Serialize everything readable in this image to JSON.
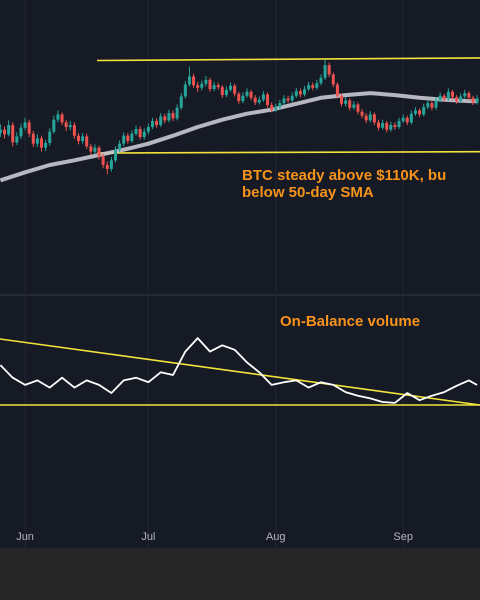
{
  "chart_data": [
    {
      "type": "candlestick",
      "annotations": [
        "BTC steady above $110K, bu",
        "below 50-day SMA"
      ],
      "up_color": "#26a69a",
      "down_color": "#ef5350",
      "xlim": [
        -0.1,
        116.7
      ],
      "ylim": [
        89.4,
        133.0
      ],
      "open": [
        113.0,
        113.5,
        112.8,
        114.2,
        111.6,
        112.5,
        113.8,
        114.6,
        112.9,
        111.4,
        112.2,
        110.8,
        111.5,
        113.2,
        115.0,
        115.8,
        114.6,
        113.9,
        114.2,
        112.6,
        111.8,
        112.5,
        111.0,
        110.2,
        110.8,
        109.5,
        108.2,
        107.6,
        108.9,
        110.5,
        111.4,
        112.6,
        111.8,
        112.9,
        113.6,
        112.4,
        113.2,
        113.9,
        114.8,
        114.2,
        115.5,
        114.9,
        116.0,
        115.2,
        116.8,
        118.5,
        120.3,
        121.5,
        120.2,
        119.8,
        120.4,
        121.0,
        119.6,
        120.2,
        119.9,
        118.7,
        119.5,
        120.1,
        118.9,
        117.8,
        118.6,
        119.2,
        118.3,
        117.6,
        118.0,
        118.8,
        117.2,
        116.5,
        116.9,
        117.5,
        118.2,
        117.9,
        118.6,
        119.3,
        118.8,
        119.6,
        120.2,
        119.8,
        120.5,
        121.3,
        123.2,
        121.8,
        120.3,
        118.6,
        117.4,
        117.9,
        116.8,
        117.3,
        116.2,
        115.6,
        114.9,
        115.8,
        114.6,
        113.8,
        114.5,
        113.5,
        114.2,
        113.9,
        114.8,
        115.3,
        114.6,
        115.9,
        116.4,
        115.8,
        116.9,
        117.5,
        116.8,
        117.9,
        118.6,
        118.1,
        119.2,
        118.4,
        117.8,
        118.5,
        119.0,
        118.3,
        117.6
      ],
      "high": [
        114.3,
        114.0,
        114.9,
        114.6,
        113.1,
        114.4,
        115.3,
        115.0,
        113.3,
        112.8,
        112.6,
        112.0,
        113.7,
        115.6,
        116.4,
        116.1,
        115.0,
        114.8,
        114.6,
        113.0,
        113.0,
        112.9,
        111.4,
        111.3,
        111.1,
        109.9,
        108.7,
        109.4,
        111.0,
        111.9,
        113.1,
        113.0,
        113.4,
        114.1,
        114.0,
        113.7,
        114.4,
        115.3,
        115.2,
        116.0,
        115.9,
        116.5,
        116.4,
        117.3,
        119.0,
        120.8,
        123.0,
        121.9,
        120.7,
        120.9,
        121.6,
        121.3,
        120.7,
        120.6,
        120.2,
        120.0,
        120.6,
        120.4,
        119.2,
        119.1,
        119.7,
        119.5,
        118.7,
        118.5,
        119.3,
        119.1,
        117.6,
        117.4,
        118.0,
        118.7,
        118.6,
        119.1,
        119.8,
        119.7,
        120.1,
        120.7,
        120.6,
        121.0,
        121.8,
        124.0,
        123.6,
        122.1,
        120.6,
        118.9,
        118.4,
        118.2,
        117.8,
        117.6,
        116.6,
        116.0,
        116.3,
        116.1,
        115.0,
        115.0,
        114.8,
        114.7,
        114.6,
        115.3,
        115.8,
        115.6,
        116.4,
        116.9,
        116.7,
        117.4,
        118.0,
        117.8,
        118.4,
        119.1,
        118.9,
        119.7,
        119.5,
        118.7,
        119.0,
        119.5,
        119.3,
        118.6,
        118.7
      ],
      "low": [
        112.4,
        112.2,
        112.5,
        111.0,
        111.2,
        112.1,
        113.4,
        112.4,
        110.9,
        110.9,
        110.2,
        110.3,
        111.1,
        112.9,
        114.6,
        114.2,
        113.3,
        113.4,
        112.1,
        111.3,
        111.4,
        110.6,
        109.7,
        109.8,
        109.0,
        107.7,
        106.8,
        107.2,
        108.6,
        110.1,
        111.0,
        111.4,
        111.5,
        112.6,
        112.0,
        112.0,
        112.8,
        113.6,
        113.8,
        113.9,
        114.5,
        114.6,
        114.8,
        114.9,
        116.5,
        118.2,
        120.0,
        119.8,
        119.2,
        119.4,
        120.0,
        119.2,
        119.3,
        119.5,
        118.3,
        118.4,
        119.2,
        118.5,
        117.4,
        117.5,
        118.3,
        117.9,
        117.2,
        117.3,
        117.7,
        116.8,
        116.1,
        116.2,
        116.6,
        117.2,
        117.5,
        117.6,
        118.3,
        118.4,
        118.5,
        119.3,
        119.4,
        119.5,
        120.2,
        121.0,
        121.4,
        119.9,
        118.2,
        117.0,
        117.0,
        116.4,
        116.5,
        115.8,
        115.2,
        114.5,
        114.6,
        114.2,
        113.4,
        113.5,
        113.1,
        113.2,
        113.5,
        113.6,
        114.5,
        114.2,
        114.3,
        115.6,
        115.4,
        115.5,
        116.6,
        116.4,
        116.5,
        117.6,
        117.7,
        117.8,
        118.0,
        117.4,
        117.5,
        118.2,
        117.9,
        117.2,
        117.3
      ],
      "close": [
        113.5,
        112.8,
        114.2,
        111.6,
        112.5,
        113.8,
        114.6,
        112.9,
        111.4,
        112.2,
        110.8,
        111.5,
        113.2,
        115.0,
        115.8,
        114.6,
        113.9,
        114.2,
        112.6,
        111.8,
        112.5,
        111.0,
        110.2,
        110.8,
        109.5,
        108.2,
        107.6,
        108.9,
        110.5,
        111.4,
        112.6,
        111.8,
        112.9,
        113.6,
        112.4,
        113.2,
        113.9,
        114.8,
        114.2,
        115.5,
        114.9,
        116.0,
        115.2,
        116.8,
        118.5,
        120.3,
        121.5,
        120.2,
        119.8,
        120.4,
        121.0,
        119.6,
        120.2,
        119.9,
        118.7,
        119.5,
        120.1,
        118.9,
        117.8,
        118.6,
        119.2,
        118.3,
        117.6,
        118.0,
        118.8,
        117.2,
        116.5,
        116.9,
        117.5,
        118.2,
        117.9,
        118.6,
        119.3,
        118.8,
        119.6,
        120.2,
        119.8,
        120.5,
        121.3,
        123.2,
        121.8,
        120.3,
        118.6,
        117.4,
        117.9,
        116.8,
        117.3,
        116.2,
        115.6,
        114.9,
        115.8,
        114.6,
        113.8,
        114.5,
        113.5,
        114.2,
        113.9,
        114.8,
        115.3,
        114.6,
        115.9,
        116.4,
        115.8,
        116.9,
        117.5,
        116.8,
        117.9,
        118.6,
        118.1,
        119.2,
        118.4,
        117.8,
        118.5,
        119.0,
        118.3,
        117.6,
        118.2
      ],
      "sma": {
        "color": "#c9c9d1",
        "x": [
          0,
          6,
          12,
          18,
          24,
          30,
          36,
          42,
          48,
          54,
          60,
          66,
          72,
          78,
          84,
          90,
          96,
          102,
          108,
          114,
          116
        ],
        "values": [
          105.9,
          107.1,
          108.2,
          108.9,
          109.7,
          110.5,
          111.4,
          112.6,
          113.9,
          115.0,
          115.9,
          116.5,
          117.4,
          118.3,
          118.7,
          119.0,
          118.7,
          118.3,
          118.0,
          117.8,
          117.8
        ]
      },
      "levels": [
        {
          "color": "#f2e33a",
          "x": [
            23.5,
            116.8
          ],
          "values": [
            123.9,
            124.3
          ]
        },
        {
          "color": "#f2e33a",
          "x": [
            23.5,
            116.8
          ],
          "values": [
            110.0,
            110.2
          ]
        }
      ]
    },
    {
      "type": "line",
      "title": "On-Balance volume",
      "xlim": [
        -0.1,
        116.7
      ],
      "ylim": [
        0,
        100
      ],
      "xticks": [
        {
          "value": 6,
          "label": "Jun"
        },
        {
          "value": 36,
          "label": "Jul"
        },
        {
          "value": 67,
          "label": "Aug"
        },
        {
          "value": 98,
          "label": "Sep"
        }
      ],
      "grid": true,
      "series": [
        {
          "color": "#ffffff",
          "x": [
            0,
            3,
            6,
            9,
            12,
            15,
            18,
            21,
            24,
            27,
            30,
            33,
            36,
            39,
            42,
            45,
            48,
            51,
            54,
            57,
            60,
            63,
            66,
            69,
            72,
            75,
            78,
            81,
            84,
            87,
            90,
            93,
            96,
            99,
            102,
            105,
            108,
            111,
            114,
            116
          ],
          "values": [
            61,
            47,
            39,
            44,
            36,
            47,
            36,
            44,
            39,
            30,
            44,
            47,
            42,
            53,
            50,
            76,
            91,
            76,
            83,
            78,
            64,
            53,
            39,
            42,
            44,
            36,
            42,
            39,
            31,
            27,
            24,
            20,
            19,
            30,
            22,
            27,
            31,
            38,
            44,
            39
          ]
        }
      ],
      "levels": [
        {
          "color": "#f2e33a",
          "x": [
            -0.1,
            116.7
          ],
          "values": [
            90,
            16.7
          ]
        },
        {
          "color": "#f2e33a",
          "x": [
            -0.1,
            116.7
          ],
          "values": [
            16.7,
            16.7
          ]
        }
      ]
    }
  ]
}
